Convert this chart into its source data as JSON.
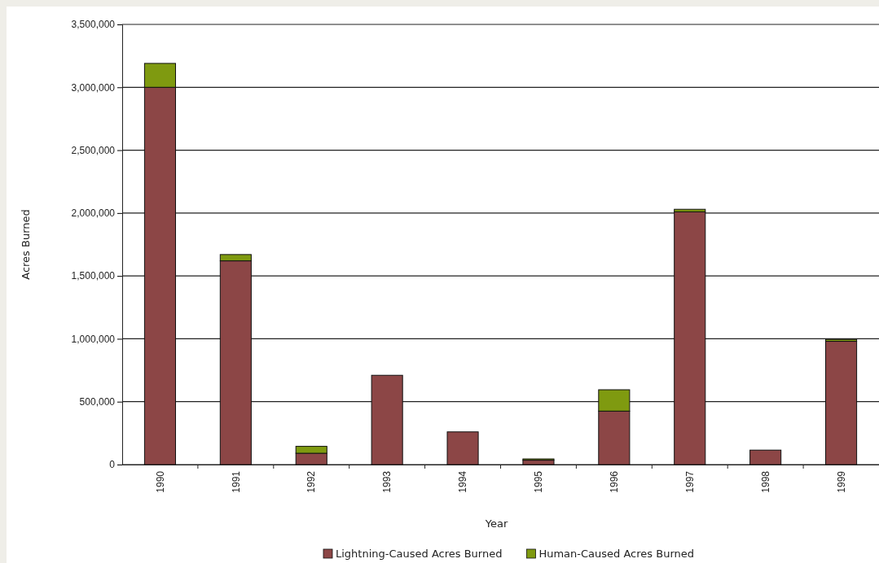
{
  "chart_data": {
    "type": "bar",
    "xlabel": "Year",
    "ylabel": "Acres Burned",
    "categories": [
      "1990",
      "1991",
      "1992",
      "1993",
      "1994",
      "1995",
      "1996",
      "1997",
      "1998",
      "1999"
    ],
    "series": [
      {
        "name": "Lightning-Caused Acres Burned",
        "color": "#8c4646",
        "values": [
          3000000,
          1620000,
          90000,
          710000,
          260000,
          35000,
          425000,
          2010000,
          115000,
          980000
        ]
      },
      {
        "name": "Human-Caused Acres Burned",
        "color": "#7f9a10",
        "values": [
          190000,
          50000,
          55000,
          0,
          0,
          10000,
          170000,
          20000,
          0,
          15000
        ]
      }
    ],
    "stacked": true,
    "ylim": [
      0,
      3500000
    ],
    "yticks": [
      {
        "value": 0,
        "label": "0"
      },
      {
        "value": 500000,
        "label": "500,000"
      },
      {
        "value": 1000000,
        "label": "1,000,000"
      },
      {
        "value": 1500000,
        "label": "1,500,000"
      },
      {
        "value": 2000000,
        "label": "2,000,000"
      },
      {
        "value": 2500000,
        "label": "2,500,000"
      },
      {
        "value": 3000000,
        "label": "3,000,000"
      },
      {
        "value": 3500000,
        "label": "3,500,000"
      }
    ],
    "grid": "y",
    "legend": "bottom"
  }
}
